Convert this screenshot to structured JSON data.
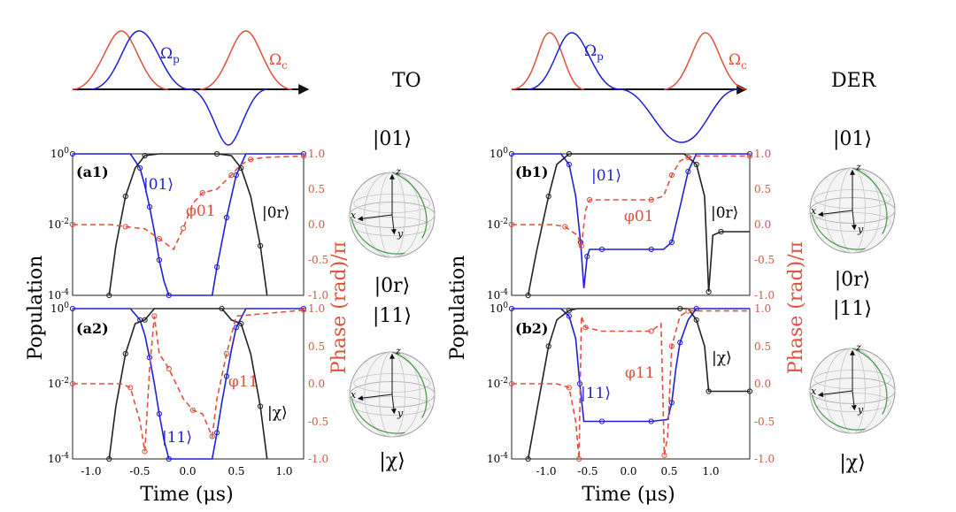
{
  "figure": {
    "y_axis_left": "Population",
    "y_axis_right": "Phase (rad)/π",
    "x_axis": "Time (μs)",
    "pulse_labels": {
      "p": "Ωp",
      "c": "Ωc"
    },
    "colors": {
      "blue": "#1f1fd6",
      "red": "#e0503c",
      "black": "#222222",
      "green": "#4f9a4f"
    }
  },
  "schemes": [
    {
      "title": "TO",
      "panel_labels": [
        "(a1)",
        "(a2)"
      ],
      "state_labels": {
        "p1_pop_blue": "|01⟩",
        "p1_pop_black": "|0r⟩",
        "p1_phase": "φ01",
        "p2_pop_blue": "|11⟩",
        "p2_pop_black": "|χ⟩",
        "p2_phase": "φ11"
      },
      "sphere_labels": [
        "|01⟩",
        "|0r⟩",
        "|11⟩",
        "|χ⟩"
      ],
      "x_ticks": [
        "-1.0",
        "-0.5",
        "0.0",
        "0.5",
        "1.0"
      ]
    },
    {
      "title": "DER",
      "panel_labels": [
        "(b1)",
        "(b2)"
      ],
      "state_labels": {
        "p1_pop_blue": "|01⟩",
        "p1_pop_black": "|0r⟩",
        "p1_phase": "φ01",
        "p2_pop_blue": "|11⟩",
        "p2_pop_black": "|χ⟩",
        "p2_phase": "φ11"
      },
      "sphere_labels": [
        "|01⟩",
        "|0r⟩",
        "|11⟩",
        "|χ⟩"
      ],
      "x_ticks": [
        "-1.0",
        "-0.5",
        "0.0",
        "0.5",
        "1.0"
      ]
    }
  ],
  "axes_ticks": {
    "left": [
      "10",
      "10",
      "10"
    ],
    "left_exp": [
      "0",
      "-2",
      "-4"
    ],
    "right": [
      "1.0",
      "0.5",
      "0.0",
      "-0.5",
      "-1.0"
    ]
  },
  "bloch_axes": {
    "x": "x",
    "y": "y",
    "z": "z"
  },
  "chart_data": [
    {
      "panel": "a1",
      "type": "line",
      "xlim": [
        -1.2,
        1.2
      ],
      "ylim_left_log10": [
        -4,
        0
      ],
      "ylim_right": [
        -1,
        1
      ],
      "series": [
        {
          "name": "|01⟩",
          "axis": "left",
          "x": [
            -1.2,
            -0.6,
            -0.5,
            -0.45,
            -0.4,
            -0.35,
            -0.3,
            -0.25,
            -0.2,
            0.25,
            0.3,
            0.35,
            0.4,
            0.45,
            0.5,
            0.6,
            1.2
          ],
          "log10_y": [
            0,
            0,
            -0.4,
            -0.9,
            -1.5,
            -2.2,
            -3.0,
            -3.6,
            -4,
            -4,
            -3.2,
            -2.5,
            -1.8,
            -1.2,
            -0.6,
            0,
            0
          ]
        },
        {
          "name": "|0r⟩",
          "axis": "left",
          "x": [
            -0.82,
            -0.75,
            -0.65,
            -0.55,
            -0.45,
            -0.3,
            0.3,
            0.45,
            0.55,
            0.65,
            0.75,
            0.82
          ],
          "log10_y": [
            -4,
            -2.6,
            -1.2,
            -0.4,
            -0.05,
            0,
            0,
            -0.05,
            -0.4,
            -1.2,
            -2.6,
            -4
          ]
        },
        {
          "name": "φ01",
          "axis": "right",
          "style": "dashed",
          "x": [
            -1.2,
            -0.8,
            -0.65,
            -0.45,
            -0.3,
            -0.15,
            -0.05,
            0.05,
            0.15,
            0.3,
            0.45,
            0.55,
            0.65,
            0.8,
            1.2
          ],
          "y": [
            0,
            0,
            -0.03,
            -0.06,
            -0.2,
            -0.35,
            -0.05,
            0.3,
            0.45,
            0.5,
            0.7,
            0.85,
            0.92,
            0.95,
            0.97
          ]
        }
      ]
    },
    {
      "panel": "a2",
      "type": "line",
      "xlim": [
        -1.2,
        1.2
      ],
      "ylim_left_log10": [
        -4,
        0
      ],
      "ylim_right": [
        -1,
        1
      ],
      "series": [
        {
          "name": "|11⟩",
          "axis": "left",
          "x": [
            -1.2,
            -0.6,
            -0.5,
            -0.45,
            -0.4,
            -0.35,
            -0.3,
            -0.25,
            -0.2,
            0.25,
            0.3,
            0.35,
            0.4,
            0.45,
            0.5,
            0.6,
            1.2
          ],
          "log10_y": [
            0,
            0,
            -0.3,
            -0.7,
            -1.3,
            -2.0,
            -2.8,
            -3.5,
            -4,
            -4,
            -3.3,
            -2.5,
            -1.8,
            -1.1,
            -0.5,
            0,
            0
          ]
        },
        {
          "name": "|χ⟩",
          "axis": "left",
          "x": [
            -0.82,
            -0.75,
            -0.65,
            -0.55,
            -0.45,
            -0.35,
            0.35,
            0.45,
            0.55,
            0.65,
            0.75,
            0.82
          ],
          "log10_y": [
            -4,
            -2.6,
            -1.2,
            -0.4,
            -0.3,
            0,
            0,
            -0.3,
            -0.4,
            -1.2,
            -2.6,
            -4
          ]
        },
        {
          "name": "φ11",
          "axis": "right",
          "style": "dashed",
          "x": [
            -1.2,
            -0.7,
            -0.6,
            -0.5,
            -0.45,
            -0.4,
            -0.35,
            -0.3,
            -0.2,
            -0.05,
            0.05,
            0.15,
            0.25,
            0.3,
            0.4,
            0.5,
            1.2
          ],
          "y": [
            0,
            0,
            -0.05,
            -0.5,
            -0.9,
            0.2,
            0.9,
            0.4,
            0.2,
            -0.2,
            -0.35,
            -0.4,
            -0.7,
            -0.2,
            0.4,
            0.9,
            0.98
          ]
        }
      ]
    },
    {
      "panel": "b1",
      "type": "line",
      "xlim": [
        -1.4,
        1.5
      ],
      "ylim_left_log10": [
        -4,
        0
      ],
      "ylim_right": [
        -1,
        1
      ],
      "series": [
        {
          "name": "|01⟩",
          "axis": "left",
          "x": [
            -1.4,
            -0.8,
            -0.7,
            -0.62,
            -0.56,
            -0.52,
            -0.48,
            -0.45,
            -0.3,
            0,
            0.3,
            0.45,
            0.55,
            0.65,
            0.75,
            0.85,
            1.5
          ],
          "log10_y": [
            0,
            0,
            -0.3,
            -1.2,
            -2.5,
            -3.8,
            -2.9,
            -2.7,
            -2.7,
            -2.7,
            -2.7,
            -2.7,
            -2.5,
            -1.5,
            -0.5,
            0,
            0
          ]
        },
        {
          "name": "|0r⟩",
          "axis": "left",
          "x": [
            -1.2,
            -1.1,
            -0.95,
            -0.85,
            -0.7,
            0.7,
            0.85,
            0.95,
            1.0,
            1.05,
            1.15,
            1.5
          ],
          "log10_y": [
            -4,
            -2.8,
            -1.2,
            -0.3,
            0,
            0,
            -0.3,
            -1.2,
            -3.9,
            -2.3,
            -2.2,
            -2.2
          ]
        },
        {
          "name": "φ01",
          "axis": "right",
          "style": "dashed",
          "x": [
            -1.4,
            -0.9,
            -0.75,
            -0.6,
            -0.55,
            -0.5,
            -0.45,
            -0.3,
            0.3,
            0.45,
            0.55,
            0.65,
            0.75,
            0.85,
            1.5
          ],
          "y": [
            0,
            0,
            -0.03,
            -0.15,
            -0.3,
            0.2,
            0.35,
            0.35,
            0.35,
            0.4,
            0.7,
            0.9,
            0.95,
            0.97,
            0.97
          ]
        }
      ]
    },
    {
      "panel": "b2",
      "type": "line",
      "xlim": [
        -1.4,
        1.5
      ],
      "ylim_left_log10": [
        -4,
        0
      ],
      "ylim_right": [
        -1,
        1
      ],
      "series": [
        {
          "name": "|11⟩",
          "axis": "left",
          "x": [
            -1.4,
            -0.8,
            -0.7,
            -0.62,
            -0.57,
            -0.52,
            -0.3,
            0,
            0.3,
            0.5,
            0.55,
            0.6,
            0.65,
            0.75,
            0.85,
            1.5
          ],
          "log10_y": [
            0,
            0,
            -0.2,
            -0.8,
            -2.0,
            -3.0,
            -3.0,
            -3.0,
            -3.0,
            -2.95,
            -2.5,
            -1.6,
            -0.9,
            -0.3,
            0,
            0
          ]
        },
        {
          "name": "|χ⟩",
          "axis": "left",
          "x": [
            -1.2,
            -1.1,
            -0.95,
            -0.85,
            -0.7,
            -0.6,
            0.65,
            0.75,
            0.85,
            0.95,
            1.0,
            1.1,
            1.5
          ],
          "log10_y": [
            -4,
            -2.8,
            -1.0,
            -0.3,
            -0.05,
            0,
            0,
            0,
            -0.3,
            -1.0,
            -2.2,
            -2.2,
            -2.2
          ]
        },
        {
          "name": "φ11",
          "axis": "right",
          "style": "dashed",
          "x": [
            -1.4,
            -0.85,
            -0.7,
            -0.62,
            -0.58,
            -0.55,
            -0.5,
            -0.3,
            0.3,
            0.42,
            0.46,
            0.5,
            0.55,
            0.65,
            0.75,
            1.5
          ],
          "y": [
            0,
            0,
            -0.05,
            -0.5,
            -1.0,
            0.9,
            0.75,
            0.7,
            0.7,
            0.8,
            -0.95,
            -0.7,
            0.5,
            0.9,
            0.97,
            0.97
          ]
        }
      ]
    }
  ]
}
